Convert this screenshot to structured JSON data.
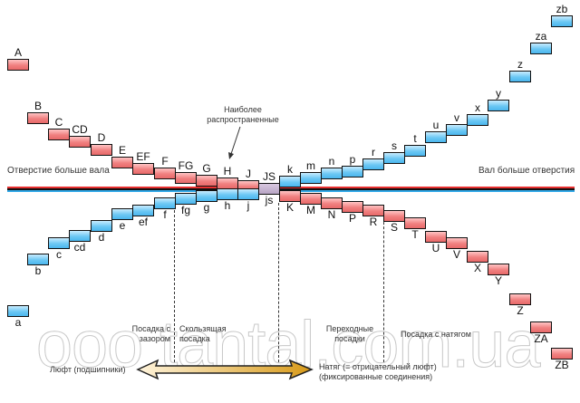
{
  "holes": [
    "A",
    "B",
    "C",
    "CD",
    "D",
    "E",
    "EF",
    "F",
    "FG",
    "G",
    "H",
    "J",
    "JS",
    "K",
    "M",
    "N",
    "P",
    "R",
    "S",
    "T",
    "U",
    "V",
    "X",
    "Y",
    "Z",
    "ZA",
    "ZB"
  ],
  "shafts": [
    "a",
    "b",
    "c",
    "cd",
    "d",
    "e",
    "ef",
    "f",
    "fg",
    "g",
    "h",
    "j",
    "js",
    "k",
    "m",
    "n",
    "p",
    "r",
    "s",
    "t",
    "u",
    "v",
    "x",
    "y",
    "z",
    "za",
    "zb"
  ],
  "labels": {
    "hole_bigger": "Отверстие больше вала",
    "shaft_bigger": "Вал больше отверстия",
    "most_common_1": "Наиболее",
    "most_common_2": "распространенные",
    "clearance_fit_1": "Посадка с",
    "clearance_fit_2": "зазором",
    "sliding_fit_1": "Скользящая",
    "sliding_fit_2": "посадка",
    "transition_fit_1": "Переходные",
    "transition_fit_2": "посадки",
    "interference_fit": "Посадка с натягом",
    "play": "Люфт (подшипники)",
    "interference_1": "Натяг (= отрицательный люфт)",
    "interference_2": "(фиксированные соединения)"
  },
  "watermark": "ooo tantal.com.ua",
  "colors": {
    "hole": "#f08080",
    "shaft": "#6cc8f4",
    "line_red": "#e83030",
    "line_blue": "#30a8e8"
  }
}
